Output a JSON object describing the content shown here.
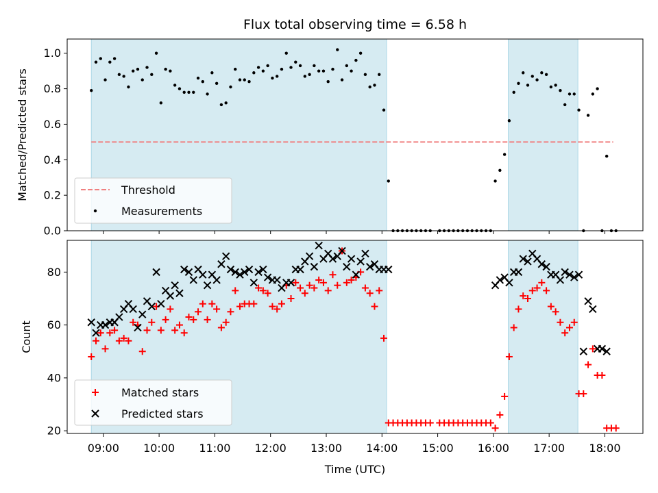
{
  "chart_data": [
    {
      "type": "scatter",
      "title": "Flux total observing time = 6.58 h",
      "xlabel": "",
      "ylabel": "Matched/Predicted stars",
      "xlim": [
        "08:21",
        "18:41"
      ],
      "ylim": [
        0.0,
        1.08
      ],
      "yticks": [
        0.0,
        0.2,
        0.4,
        0.6,
        0.8,
        1.0
      ],
      "ytick_labels": [
        "0.0",
        "0.2",
        "0.4",
        "0.6",
        "0.8",
        "1.0"
      ],
      "grid": false,
      "legend_position": "lower-left",
      "observing_windows": [
        [
          "08:47",
          "14:05"
        ],
        [
          "16:16",
          "17:31"
        ]
      ],
      "threshold": {
        "name": "Threshold",
        "y": 0.5,
        "x_range": [
          "08:47",
          "18:09"
        ],
        "color": "#f08080"
      },
      "series": [
        {
          "name": "Measurements",
          "color": "#000000",
          "x": [
            "08:47",
            "08:52",
            "08:57",
            "09:02",
            "09:07",
            "09:12",
            "09:17",
            "09:22",
            "09:27",
            "09:32",
            "09:37",
            "09:42",
            "09:47",
            "09:52",
            "09:57",
            "10:02",
            "10:07",
            "10:12",
            "10:17",
            "10:22",
            "10:27",
            "10:32",
            "10:37",
            "10:42",
            "10:47",
            "10:52",
            "10:57",
            "11:02",
            "11:07",
            "11:12",
            "11:17",
            "11:22",
            "11:27",
            "11:32",
            "11:37",
            "11:42",
            "11:47",
            "11:52",
            "11:57",
            "12:02",
            "12:07",
            "12:12",
            "12:17",
            "12:22",
            "12:27",
            "12:32",
            "12:37",
            "12:42",
            "12:47",
            "12:52",
            "12:57",
            "13:02",
            "13:07",
            "13:12",
            "13:17",
            "13:22",
            "13:27",
            "13:32",
            "13:37",
            "13:42",
            "13:47",
            "13:52",
            "13:57",
            "14:02",
            "14:07",
            "14:12",
            "14:17",
            "14:22",
            "14:27",
            "14:32",
            "14:37",
            "14:42",
            "14:47",
            "14:52",
            "15:02",
            "15:07",
            "15:12",
            "15:17",
            "15:22",
            "15:27",
            "15:32",
            "15:37",
            "15:42",
            "15:47",
            "15:52",
            "15:57",
            "16:02",
            "16:07",
            "16:12",
            "16:17",
            "16:22",
            "16:27",
            "16:32",
            "16:37",
            "16:42",
            "16:47",
            "16:52",
            "16:57",
            "17:02",
            "17:07",
            "17:12",
            "17:17",
            "17:22",
            "17:27",
            "17:32",
            "17:37",
            "17:42",
            "17:47",
            "17:52",
            "17:57",
            "18:02",
            "18:07",
            "18:12"
          ],
          "y": [
            0.79,
            0.95,
            0.97,
            0.85,
            0.95,
            0.97,
            0.88,
            0.87,
            0.81,
            0.9,
            0.91,
            0.85,
            0.92,
            0.88,
            1.0,
            0.72,
            0.91,
            0.9,
            0.82,
            0.8,
            0.78,
            0.78,
            0.78,
            0.86,
            0.84,
            0.77,
            0.89,
            0.83,
            0.71,
            0.72,
            0.81,
            0.91,
            0.85,
            0.85,
            0.84,
            0.89,
            0.92,
            0.9,
            0.93,
            0.86,
            0.87,
            0.91,
            1.0,
            0.92,
            0.95,
            0.93,
            0.87,
            0.88,
            0.93,
            0.9,
            0.9,
            0.84,
            0.91,
            1.02,
            0.85,
            0.93,
            0.9,
            0.96,
            1.0,
            0.88,
            0.81,
            0.82,
            0.88,
            0.68,
            0.28,
            0.0,
            0.0,
            0.0,
            0.0,
            0.0,
            0.0,
            0.0,
            0.0,
            0.0,
            0.0,
            0.0,
            0.0,
            0.0,
            0.0,
            0.0,
            0.0,
            0.0,
            0.0,
            0.0,
            0.0,
            0.0,
            0.28,
            0.34,
            0.43,
            0.62,
            0.78,
            0.83,
            0.89,
            0.82,
            0.87,
            0.85,
            0.89,
            0.88,
            0.81,
            0.82,
            0.79,
            0.71,
            0.77,
            0.77,
            0.68,
            0.0,
            0.65,
            0.77,
            0.8,
            0.0,
            0.42,
            0.0,
            0.0
          ]
        }
      ]
    },
    {
      "type": "scatter",
      "title": "",
      "xlabel": "Time (UTC)",
      "ylabel": "Count",
      "xlim": [
        "08:21",
        "18:41"
      ],
      "ylim": [
        19,
        92
      ],
      "yticks": [
        20,
        40,
        60,
        80
      ],
      "ytick_labels": [
        "20",
        "40",
        "60",
        "80"
      ],
      "xticks": [
        "09:00",
        "10:00",
        "11:00",
        "12:00",
        "13:00",
        "14:00",
        "15:00",
        "16:00",
        "17:00",
        "18:00"
      ],
      "grid": false,
      "legend_position": "lower-left",
      "observing_windows": [
        [
          "08:47",
          "14:05"
        ],
        [
          "16:16",
          "17:31"
        ]
      ],
      "series": [
        {
          "name": "Matched stars",
          "marker": "+",
          "color": "#ff0000",
          "x": [
            "08:47",
            "08:52",
            "08:57",
            "09:02",
            "09:07",
            "09:12",
            "09:17",
            "09:22",
            "09:27",
            "09:32",
            "09:37",
            "09:42",
            "09:47",
            "09:52",
            "09:57",
            "10:02",
            "10:07",
            "10:12",
            "10:17",
            "10:22",
            "10:27",
            "10:32",
            "10:37",
            "10:42",
            "10:47",
            "10:52",
            "10:57",
            "11:02",
            "11:07",
            "11:12",
            "11:17",
            "11:22",
            "11:27",
            "11:32",
            "11:37",
            "11:42",
            "11:47",
            "11:52",
            "11:57",
            "12:02",
            "12:07",
            "12:12",
            "12:17",
            "12:22",
            "12:27",
            "12:32",
            "12:37",
            "12:42",
            "12:47",
            "12:52",
            "12:57",
            "13:02",
            "13:07",
            "13:12",
            "13:17",
            "13:22",
            "13:27",
            "13:32",
            "13:37",
            "13:42",
            "13:47",
            "13:52",
            "13:57",
            "14:02",
            "14:07",
            "14:12",
            "14:17",
            "14:22",
            "14:27",
            "14:32",
            "14:37",
            "14:42",
            "14:47",
            "14:52",
            "15:02",
            "15:07",
            "15:12",
            "15:17",
            "15:22",
            "15:27",
            "15:32",
            "15:37",
            "15:42",
            "15:47",
            "15:52",
            "15:57",
            "16:02",
            "16:07",
            "16:12",
            "16:17",
            "16:22",
            "16:27",
            "16:32",
            "16:37",
            "16:42",
            "16:47",
            "16:52",
            "16:57",
            "17:02",
            "17:07",
            "17:12",
            "17:17",
            "17:22",
            "17:27",
            "17:32",
            "17:37",
            "17:42",
            "17:47",
            "17:52",
            "17:57",
            "18:02",
            "18:07",
            "18:12"
          ],
          "y": [
            48,
            54,
            57,
            51,
            57,
            58,
            54,
            55,
            54,
            61,
            60,
            50,
            58,
            61,
            67,
            58,
            62,
            66,
            58,
            60,
            57,
            63,
            62,
            65,
            68,
            62,
            68,
            66,
            59,
            61,
            65,
            73,
            67,
            68,
            68,
            68,
            74,
            73,
            72,
            67,
            66,
            68,
            75,
            70,
            76,
            74,
            72,
            75,
            74,
            77,
            76,
            73,
            79,
            75,
            88,
            76,
            77,
            78,
            80,
            74,
            72,
            67,
            73,
            55,
            23,
            23,
            23,
            23,
            23,
            23,
            23,
            23,
            23,
            23,
            23,
            23,
            23,
            23,
            23,
            23,
            23,
            23,
            23,
            23,
            23,
            23,
            21,
            26,
            33,
            48,
            59,
            66,
            71,
            70,
            73,
            74,
            76,
            73,
            67,
            65,
            61,
            57,
            59,
            61,
            34,
            34,
            45,
            51,
            41,
            41,
            21,
            21,
            21
          ]
        },
        {
          "name": "Predicted stars",
          "marker": "x",
          "color": "#000000",
          "x": [
            "08:47",
            "08:52",
            "08:57",
            "09:02",
            "09:07",
            "09:12",
            "09:17",
            "09:22",
            "09:27",
            "09:32",
            "09:37",
            "09:42",
            "09:47",
            "09:52",
            "09:57",
            "10:02",
            "10:07",
            "10:12",
            "10:17",
            "10:22",
            "10:27",
            "10:32",
            "10:37",
            "10:42",
            "10:47",
            "10:52",
            "10:57",
            "11:02",
            "11:07",
            "11:12",
            "11:17",
            "11:22",
            "11:27",
            "11:32",
            "11:37",
            "11:42",
            "11:47",
            "11:52",
            "11:57",
            "12:02",
            "12:07",
            "12:12",
            "12:17",
            "12:22",
            "12:27",
            "12:32",
            "12:37",
            "12:42",
            "12:47",
            "12:52",
            "12:57",
            "13:02",
            "13:07",
            "13:12",
            "13:17",
            "13:22",
            "13:27",
            "13:32",
            "13:37",
            "13:42",
            "13:47",
            "13:52",
            "13:57",
            "14:02",
            "14:07",
            "16:02",
            "16:07",
            "16:12",
            "16:17",
            "16:22",
            "16:27",
            "16:32",
            "16:37",
            "16:42",
            "16:47",
            "16:52",
            "16:57",
            "17:02",
            "17:07",
            "17:12",
            "17:17",
            "17:22",
            "17:27",
            "17:32",
            "17:37",
            "17:42",
            "17:47",
            "17:52",
            "17:57",
            "18:02"
          ],
          "y": [
            61,
            57,
            60,
            60,
            61,
            61,
            63,
            66,
            68,
            66,
            59,
            64,
            69,
            67,
            80,
            68,
            73,
            71,
            75,
            72,
            81,
            80,
            77,
            81,
            79,
            75,
            79,
            77,
            83,
            86,
            81,
            80,
            79,
            80,
            81,
            76,
            80,
            81,
            78,
            77,
            77,
            74,
            76,
            76,
            81,
            81,
            84,
            86,
            82,
            90,
            85,
            87,
            85,
            86,
            88,
            82,
            85,
            79,
            84,
            87,
            82,
            83,
            81,
            81,
            81,
            75,
            77,
            78,
            76,
            80,
            80,
            85,
            84,
            87,
            85,
            83,
            82,
            79,
            79,
            77,
            80,
            79,
            78,
            79,
            50,
            69,
            66,
            51,
            51,
            50
          ]
        }
      ]
    }
  ]
}
